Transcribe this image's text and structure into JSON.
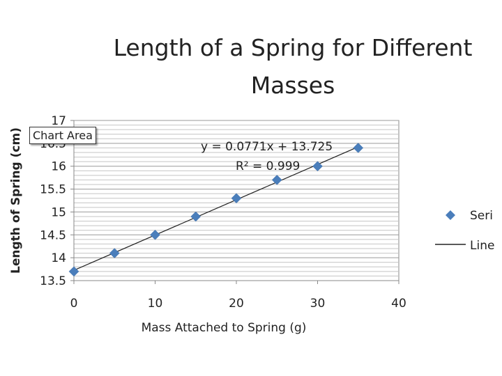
{
  "chart_data": {
    "type": "scatter",
    "title_lines": [
      "Length of a Spring for Different",
      "Masses"
    ],
    "xlabel": "Mass Attached to Spring (g)",
    "ylabel": "Length of Spring (cm)",
    "xlim": [
      0,
      40
    ],
    "ylim": [
      13.5,
      17
    ],
    "xticks": [
      "0",
      "10",
      "20",
      "30",
      "40"
    ],
    "yticks": [
      "13.5",
      "14",
      "14.5",
      "15",
      "15.5",
      "16",
      "16.5",
      "17"
    ],
    "grid": true,
    "series": [
      {
        "name": "Seri",
        "x": [
          0,
          5,
          10,
          15,
          20,
          25,
          30,
          35
        ],
        "y": [
          13.7,
          14.1,
          14.5,
          14.9,
          15.3,
          15.7,
          16.0,
          16.4
        ],
        "color": "#4a7ebb"
      }
    ],
    "trendline": {
      "name": "Line",
      "slope": 0.0771,
      "intercept": 13.725,
      "x_range": [
        0,
        35
      ],
      "equation": "y = 0.0771x + 13.725",
      "r_squared": "R² = 0.999",
      "color": "#222222"
    },
    "legend_position": "right",
    "tooltip": "Chart Area"
  }
}
